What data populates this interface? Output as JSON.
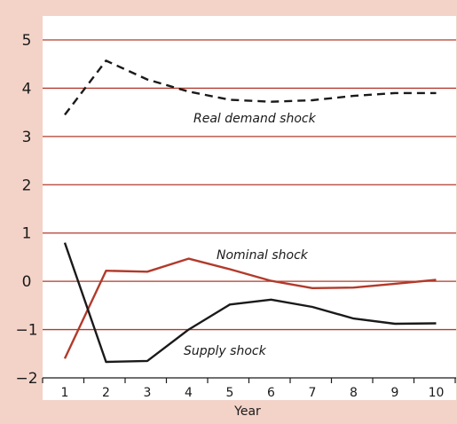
{
  "chart_data": {
    "type": "line",
    "xlabel": "Year",
    "ylabel": "",
    "x": [
      1,
      2,
      3,
      4,
      5,
      6,
      7,
      8,
      9,
      10
    ],
    "x_tick_labels": [
      "1",
      "2",
      "3",
      "4",
      "5",
      "6",
      "7",
      "8",
      "9",
      "10"
    ],
    "ylim": [
      -2,
      5
    ],
    "y_ticks": [
      5,
      4,
      3,
      2,
      1,
      0,
      -1,
      -2
    ],
    "y_tick_labels": [
      "5",
      "4",
      "3",
      "2",
      "1",
      "0",
      "−1",
      "−2"
    ],
    "grid": true,
    "legend": "none",
    "series": [
      {
        "name": "Real demand shock",
        "style": "dashed",
        "color": "#1a1a1a",
        "values": [
          3.45,
          4.57,
          4.18,
          3.93,
          3.76,
          3.72,
          3.75,
          3.84,
          3.9,
          3.9
        ]
      },
      {
        "name": "Nominal shock",
        "style": "solid",
        "color": "#b23a2b",
        "values": [
          -1.6,
          0.22,
          0.2,
          0.47,
          0.25,
          0.01,
          -0.14,
          -0.13,
          -0.05,
          0.03
        ]
      },
      {
        "name": "Supply shock",
        "style": "solid",
        "color": "#1a1a1a",
        "values": [
          0.8,
          -1.67,
          -1.65,
          -1.0,
          -0.48,
          -0.38,
          -0.53,
          -0.77,
          -0.88,
          -0.87
        ]
      }
    ]
  },
  "colors": {
    "background": "#f3d3c8",
    "plot_background": "#ffffff",
    "gridline": "#b23a2b",
    "axis": "#1a1a1a"
  }
}
